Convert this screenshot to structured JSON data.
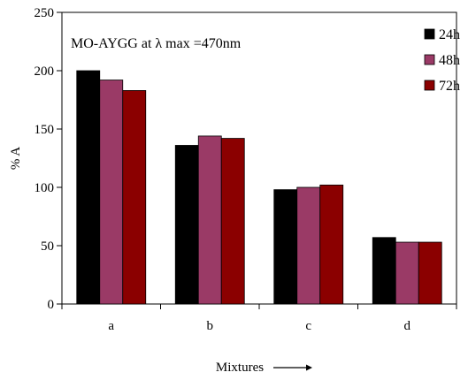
{
  "chart_data": {
    "type": "bar",
    "annotation": "MO-AYGG at λ max =470nm",
    "xlabel": "Mixtures",
    "ylabel": "% A",
    "categories": [
      "a",
      "b",
      "c",
      "d"
    ],
    "ylim": [
      0,
      250
    ],
    "yticks": [
      "0",
      "50",
      "100",
      "150",
      "200",
      "250"
    ],
    "grid": false,
    "legend_position": "top-right",
    "series": [
      {
        "name": "24h",
        "color": "#000000",
        "values": [
          200,
          136,
          98,
          57
        ]
      },
      {
        "name": "48h",
        "color": "#9a3a66",
        "values": [
          192,
          144,
          100,
          53
        ]
      },
      {
        "name": "72h",
        "color": "#8b0000",
        "values": [
          183,
          142,
          102,
          53
        ]
      }
    ]
  }
}
